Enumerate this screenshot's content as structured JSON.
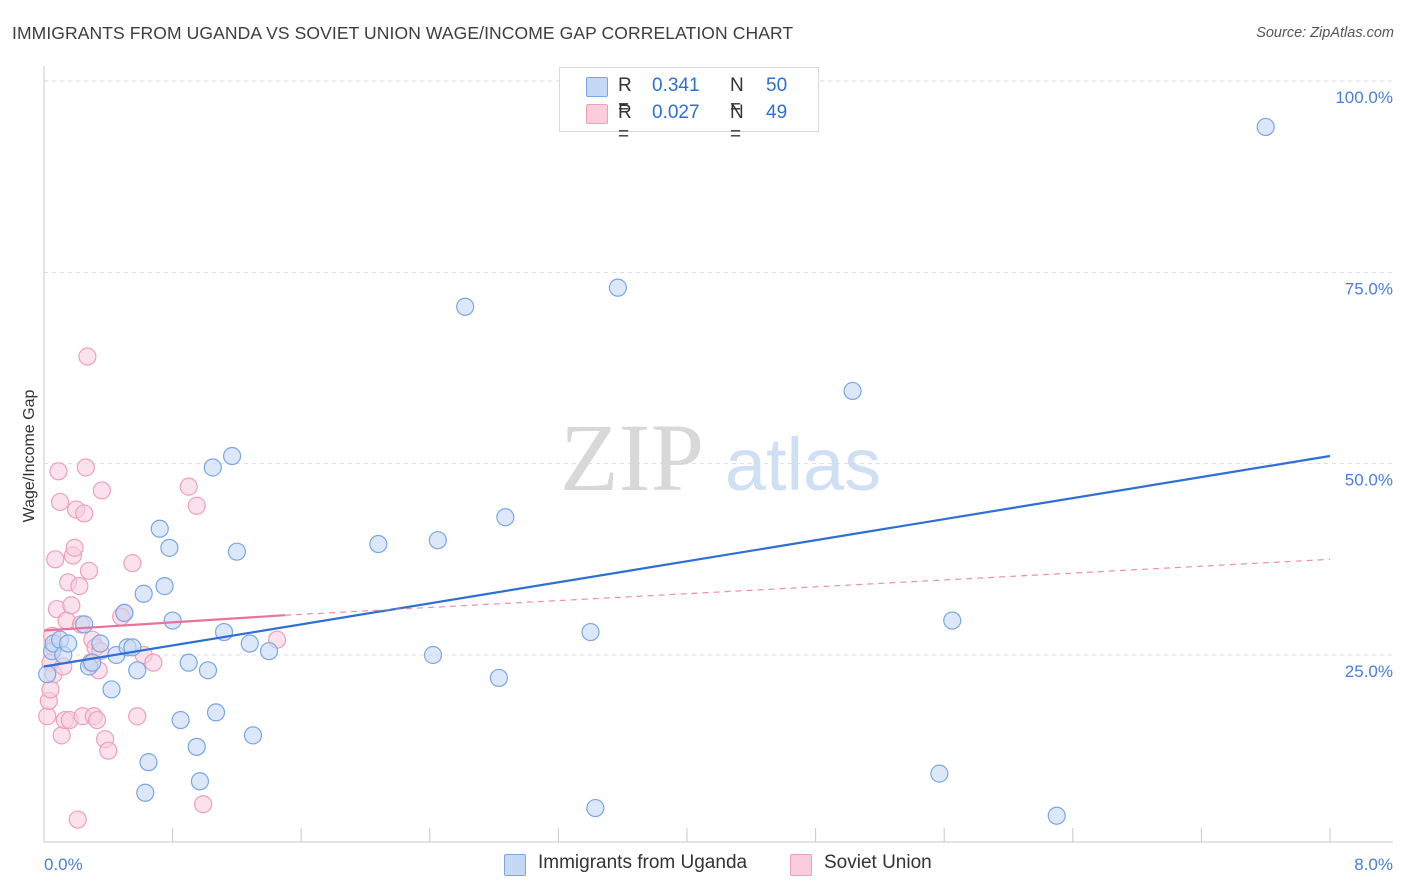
{
  "header": {
    "title": "IMMIGRANTS FROM UGANDA VS SOVIET UNION WAGE/INCOME GAP CORRELATION CHART",
    "source": "Source: ZipAtlas.com"
  },
  "colors": {
    "blue": "#2e6fd3",
    "blue_fill": "#c5d9f5",
    "blue_stroke": "#7aa6e3",
    "pink": "#e8729a",
    "pink_fill": "#f9cddd",
    "pink_stroke": "#eea0bb",
    "grid": "#dddddd",
    "tick_text": "#4a7fd4"
  },
  "legend": {
    "rows": [
      {
        "r_label": "R =",
        "r_value": "0.341",
        "n_label": "N =",
        "n_value": "50"
      },
      {
        "r_label": "R =",
        "r_value": "0.027",
        "n_label": "N =",
        "n_value": "49"
      }
    ]
  },
  "watermark": {
    "zip": "ZIP",
    "atlas": "atlas"
  },
  "chart_data": {
    "type": "scatter",
    "title": "IMMIGRANTS FROM UGANDA VS SOVIET UNION WAGE/INCOME GAP CORRELATION CHART",
    "xlabel": "",
    "ylabel": "Wage/Income Gap",
    "xlim": [
      0,
      8
    ],
    "ylim": [
      0,
      102
    ],
    "x_tick_labels": [
      "0.0%",
      "8.0%"
    ],
    "y_ticks": [
      25,
      50,
      75,
      100
    ],
    "y_tick_labels": [
      "25.0%",
      "50.0%",
      "75.0%",
      "100.0%"
    ],
    "grid": true,
    "legend_position": "top-center",
    "series": [
      {
        "name": "Immigrants from Uganda",
        "color": "blue",
        "R": 0.341,
        "N": 50,
        "trend": {
          "x0": 0.0,
          "y0": 23.5,
          "x1": 8.0,
          "y1": 51.0,
          "style": "solid"
        },
        "points": [
          [
            0.02,
            22.5
          ],
          [
            0.05,
            25.5
          ],
          [
            0.06,
            26.5
          ],
          [
            0.1,
            27.0
          ],
          [
            0.12,
            25.0
          ],
          [
            0.15,
            26.5
          ],
          [
            0.25,
            29.0
          ],
          [
            0.28,
            23.5
          ],
          [
            0.35,
            26.5
          ],
          [
            0.42,
            20.5
          ],
          [
            0.45,
            25.0
          ],
          [
            0.5,
            30.5
          ],
          [
            0.52,
            26.0
          ],
          [
            0.58,
            23.0
          ],
          [
            0.62,
            33.0
          ],
          [
            0.63,
            7.0
          ],
          [
            0.65,
            11.0
          ],
          [
            0.72,
            41.5
          ],
          [
            0.75,
            34.0
          ],
          [
            0.78,
            39.0
          ],
          [
            0.8,
            29.5
          ],
          [
            0.85,
            16.5
          ],
          [
            0.9,
            24.0
          ],
          [
            0.95,
            13.0
          ],
          [
            0.97,
            8.5
          ],
          [
            1.02,
            23.0
          ],
          [
            1.05,
            49.5
          ],
          [
            1.07,
            17.5
          ],
          [
            1.12,
            28.0
          ],
          [
            1.17,
            51.0
          ],
          [
            1.2,
            38.5
          ],
          [
            1.28,
            26.5
          ],
          [
            1.3,
            14.5
          ],
          [
            1.4,
            25.5
          ],
          [
            2.08,
            39.5
          ],
          [
            2.42,
            25.0
          ],
          [
            2.45,
            40.0
          ],
          [
            2.62,
            70.5
          ],
          [
            2.83,
            22.0
          ],
          [
            2.87,
            43.0
          ],
          [
            3.4,
            28.0
          ],
          [
            3.43,
            5.0
          ],
          [
            3.57,
            73.0
          ],
          [
            5.03,
            59.5
          ],
          [
            5.57,
            9.5
          ],
          [
            5.65,
            29.5
          ],
          [
            6.3,
            4.0
          ],
          [
            7.6,
            94.0
          ],
          [
            0.3,
            24.0
          ],
          [
            0.55,
            26.0
          ]
        ]
      },
      {
        "name": "Soviet Union",
        "color": "pink",
        "R": 0.027,
        "N": 49,
        "trend_solid": {
          "x0": 0.0,
          "y0": 28.2,
          "x1": 1.5,
          "y1": 30.2,
          "style": "solid"
        },
        "trend_dashed": {
          "x0": 1.5,
          "y0": 30.2,
          "x1": 8.0,
          "y1": 37.5,
          "style": "dashed"
        },
        "points": [
          [
            0.02,
            17.0
          ],
          [
            0.03,
            19.0
          ],
          [
            0.04,
            24.0
          ],
          [
            0.05,
            27.5
          ],
          [
            0.06,
            22.5
          ],
          [
            0.07,
            37.5
          ],
          [
            0.08,
            31.0
          ],
          [
            0.09,
            49.0
          ],
          [
            0.1,
            45.0
          ],
          [
            0.11,
            14.5
          ],
          [
            0.12,
            23.5
          ],
          [
            0.13,
            16.5
          ],
          [
            0.14,
            29.5
          ],
          [
            0.15,
            34.5
          ],
          [
            0.16,
            16.5
          ],
          [
            0.17,
            31.5
          ],
          [
            0.18,
            38.0
          ],
          [
            0.19,
            39.0
          ],
          [
            0.2,
            44.0
          ],
          [
            0.21,
            3.5
          ],
          [
            0.22,
            34.0
          ],
          [
            0.24,
            17.0
          ],
          [
            0.25,
            43.5
          ],
          [
            0.26,
            49.5
          ],
          [
            0.27,
            64.0
          ],
          [
            0.28,
            36.0
          ],
          [
            0.29,
            24.0
          ],
          [
            0.3,
            27.0
          ],
          [
            0.31,
            17.0
          ],
          [
            0.32,
            26.0
          ],
          [
            0.33,
            16.5
          ],
          [
            0.34,
            23.0
          ],
          [
            0.36,
            46.5
          ],
          [
            0.38,
            14.0
          ],
          [
            0.4,
            12.5
          ],
          [
            0.5,
            30.5
          ],
          [
            0.55,
            37.0
          ],
          [
            0.58,
            17.0
          ],
          [
            0.62,
            25.0
          ],
          [
            0.68,
            24.0
          ],
          [
            0.9,
            47.0
          ],
          [
            0.95,
            44.5
          ],
          [
            0.99,
            5.5
          ],
          [
            1.45,
            27.0
          ],
          [
            0.06,
            26.0
          ],
          [
            0.23,
            29.0
          ],
          [
            0.35,
            25.5
          ],
          [
            0.48,
            30.0
          ],
          [
            0.04,
            20.5
          ]
        ]
      }
    ]
  }
}
